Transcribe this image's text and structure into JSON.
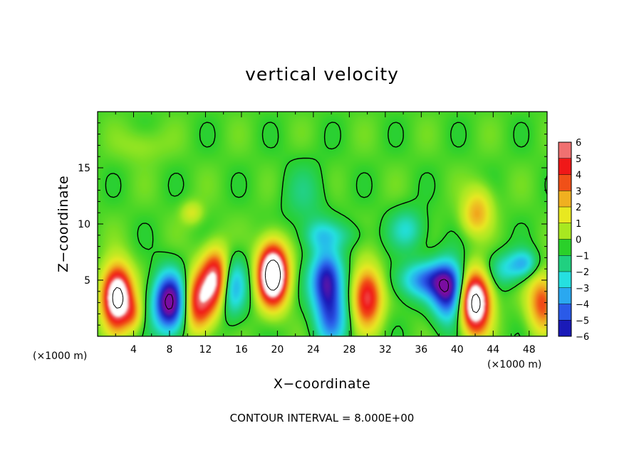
{
  "chart_data": {
    "type": "heatmap",
    "title": "vertical velocity",
    "xlabel": "X−coordinate",
    "ylabel": "Z−coordinate",
    "x_unit_label": "(×1000 m)",
    "y_unit_label": "(×1000 m)",
    "x_ticks": [
      "4",
      "8",
      "12",
      "16",
      "20",
      "24",
      "28",
      "32",
      "36",
      "40",
      "44",
      "48"
    ],
    "y_ticks": [
      "5",
      "10",
      "15"
    ],
    "xlim": [
      0,
      50
    ],
    "ylim": [
      0,
      20
    ],
    "colorbar": {
      "ticks": [
        "6",
        "5",
        "4",
        "3",
        "2",
        "1",
        "0",
        "−1",
        "−2",
        "−3",
        "−4",
        "−5",
        "−6"
      ],
      "min": -6,
      "max": 6,
      "colors": [
        "#7a0fa0",
        "#1a1ab8",
        "#2a5ae8",
        "#2aa8f0",
        "#25e0e0",
        "#20d080",
        "#2ad02a",
        "#a8e820",
        "#e8e820",
        "#f0b020",
        "#f05018",
        "#f01818",
        "#f07070"
      ]
    },
    "features": [
      {
        "kind": "updraft",
        "x": 2.2,
        "z": 3.5,
        "peak": 9
      },
      {
        "kind": "downdraft",
        "x": 8.0,
        "z": 3.0,
        "peak": -7
      },
      {
        "kind": "updraft",
        "x": 11.2,
        "z": 3.0,
        "peak": 5
      },
      {
        "kind": "updraft",
        "x": 13.3,
        "z": 5.0,
        "peak": 8
      },
      {
        "kind": "downdraft",
        "x": 14.5,
        "z": 4.5,
        "peak": -5
      },
      {
        "kind": "updraft",
        "x": 19.5,
        "z": 5.5,
        "peak": 10
      },
      {
        "kind": "downdraft",
        "x": 25.5,
        "z": 5.0,
        "peak": -5.5
      },
      {
        "kind": "downdraft",
        "x": 26.0,
        "z": 1.5,
        "peak": -3.5
      },
      {
        "kind": "updraft",
        "x": 30.0,
        "z": 3.5,
        "peak": 5.5
      },
      {
        "kind": "downdraft",
        "x": 39.0,
        "z": 4.0,
        "peak": -5.5
      },
      {
        "kind": "updraft",
        "x": 42.0,
        "z": 3.0,
        "peak": 9
      },
      {
        "kind": "updraft",
        "x": 42.0,
        "z": 10.5,
        "peak": 2
      },
      {
        "kind": "updraft",
        "x": 49.5,
        "z": 3.0,
        "peak": 4
      }
    ],
    "grid": false
  },
  "annotation": {
    "contour_interval": "CONTOUR INTERVAL = 8.000E+00"
  }
}
